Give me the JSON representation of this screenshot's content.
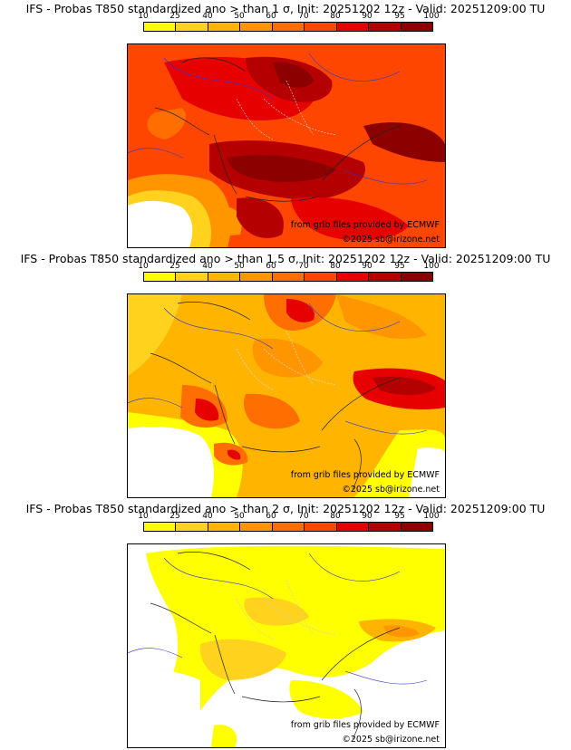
{
  "legend": {
    "ticks": [
      "10",
      "25",
      "40",
      "50",
      "60",
      "70",
      "80",
      "90",
      "95",
      "100"
    ],
    "colors": [
      "#ffff00",
      "#ffd21e",
      "#ffb400",
      "#ff9600",
      "#ff6e00",
      "#ff4600",
      "#e60000",
      "#b40000",
      "#8c0000",
      "#5a0000"
    ]
  },
  "panels": [
    {
      "title": "IFS - Probas T850  standardized ano > than 1 σ, Init: 20251202 12z - Valid: 20251209:00 TU",
      "credit": "from grib files provided by ECMWF",
      "copyright": "©2025 sb@irizone.net"
    },
    {
      "title": "IFS - Probas T850  standardized ano > than 1.5 σ, Init: 20251202 12z - Valid: 20251209:00 TU",
      "credit": "from grib files provided by ECMWF",
      "copyright": "©2025 sb@irizone.net"
    },
    {
      "title": "IFS - Probas T850  standardized ano > than 2 σ, Init: 20251202 12z - Valid: 20251209:00 TU",
      "credit": "from grib files provided by ECMWF",
      "copyright": "©2025 sb@irizone.net"
    }
  ]
}
